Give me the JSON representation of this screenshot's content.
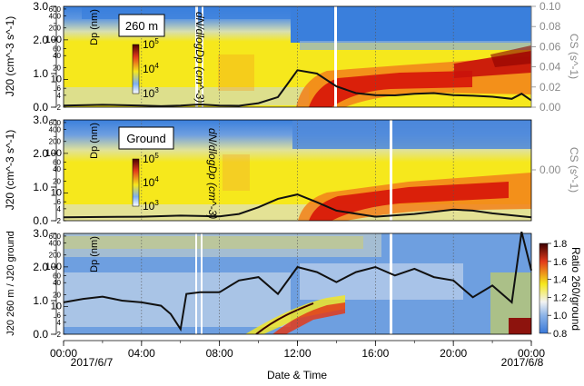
{
  "chart_data": [
    {
      "type": "heatmap",
      "panel": "260 m",
      "label": "260 m",
      "left_ylabel": "J20 (cm^-3 s^-1)",
      "left_ytick_labels": [
        "0.0",
        "1.0",
        "2.0",
        "3.0"
      ],
      "left_ylim": [
        0,
        3
      ],
      "dp_ylabel": "Dp (nm)",
      "dp_ytick_labels": [
        "2",
        "4",
        "6",
        "10",
        "20",
        "40",
        "60",
        "100",
        "200",
        "400",
        "600"
      ],
      "right_ylabel": "CS (s^-1)",
      "right_ytick_labels": [
        "0.00",
        "0.02",
        "0.04",
        "0.06",
        "0.08",
        "0.10"
      ],
      "right_ylim": [
        0,
        0.1
      ],
      "colorbar_label": "dN/dlogDp (cm^-3)",
      "colorbar_tick_labels": [
        "10^3",
        "10^4",
        "10^5"
      ],
      "series": [
        {
          "name": "J20 (260 m)",
          "x_hours": [
            0,
            2,
            4,
            5,
            6,
            7,
            8,
            9,
            10,
            11,
            11.5,
            12,
            13,
            14,
            15,
            16,
            17,
            18,
            19,
            20,
            21,
            22,
            23,
            23.5,
            24
          ],
          "values": [
            0.05,
            0.07,
            0.05,
            0.03,
            0.05,
            0.08,
            0.05,
            0.04,
            0.12,
            0.3,
            0.7,
            1.1,
            1.0,
            0.62,
            0.42,
            0.36,
            0.35,
            0.4,
            0.42,
            0.36,
            0.34,
            0.31,
            0.25,
            0.4,
            0.2
          ]
        }
      ]
    },
    {
      "type": "heatmap",
      "panel": "Ground",
      "label": "Ground",
      "left_ylabel": "J20 (cm^-3 s^-1)",
      "left_ytick_labels": [
        "0.0",
        "1.0",
        "2.0",
        "3.0"
      ],
      "left_ylim": [
        0,
        3
      ],
      "dp_ylabel": "Dp (nm)",
      "dp_ytick_labels": [
        "2",
        "4",
        "6",
        "10",
        "20",
        "40",
        "60",
        "100",
        "200",
        "400",
        "600"
      ],
      "right_ylabel": "CS (s^-1)",
      "right_ytick_labels": [
        "0.00"
      ],
      "colorbar_label": "dN/dlogDp (cm^-3)",
      "colorbar_tick_labels": [
        "10^3",
        "10^4",
        "10^5"
      ],
      "series": [
        {
          "name": "J20 (Ground)",
          "x_hours": [
            0,
            2,
            4,
            6,
            8,
            9,
            10,
            11,
            12,
            13,
            14,
            16,
            18,
            20,
            21,
            22,
            24
          ],
          "values": [
            0.1,
            0.11,
            0.12,
            0.15,
            0.13,
            0.2,
            0.4,
            0.65,
            0.78,
            0.55,
            0.3,
            0.12,
            0.2,
            0.33,
            0.3,
            0.22,
            0.1
          ]
        }
      ]
    },
    {
      "type": "heatmap",
      "panel": "Ratio",
      "left_ylabel": "J20 260 m / J20 ground",
      "left_ytick_labels": [
        "0.0",
        "1.0",
        "2.0",
        "3.0"
      ],
      "left_ylim": [
        0,
        3
      ],
      "dp_ylabel": "Dp (nm)",
      "dp_ytick_labels": [
        "2",
        "4",
        "6",
        "10",
        "20",
        "40",
        "60",
        "100",
        "200",
        "400",
        "600"
      ],
      "colorbar_label": "Ratio 260/ground",
      "colorbar_tick_labels": [
        "0.8",
        "1.0",
        "1.2",
        "1.4",
        "1.6",
        "1.8"
      ],
      "colorbar_range": [
        0.8,
        1.8
      ],
      "series": [
        {
          "name": "J20 ratio",
          "x_hours": [
            0,
            1,
            2,
            3,
            4,
            5,
            5.5,
            6,
            6.3,
            7,
            8,
            9,
            10,
            11,
            12,
            13,
            14,
            15,
            16,
            17,
            18,
            19,
            20,
            21,
            22,
            23,
            23.5,
            24
          ],
          "values": [
            0.95,
            1.05,
            1.12,
            1.0,
            0.95,
            0.85,
            0.6,
            0.15,
            1.2,
            1.25,
            1.25,
            1.6,
            1.7,
            1.2,
            2.0,
            1.85,
            1.55,
            1.85,
            2.0,
            1.75,
            1.95,
            1.7,
            1.6,
            1.1,
            1.45,
            0.95,
            3.05,
            1.9
          ]
        }
      ]
    }
  ],
  "x_axis": {
    "xlabel": "Date & Time",
    "xlim_hours": [
      0,
      24
    ],
    "tick_labels": [
      "00:00",
      "04:00",
      "08:00",
      "12:00",
      "16:00",
      "20:00",
      "00:00"
    ],
    "date_labels": [
      "2017/6/7",
      "2017/6/8"
    ]
  },
  "colors": {
    "line": "#111111",
    "spectral_low": "#3a78d8",
    "spectral_mid": "#f5e600",
    "spectral_high": "#d40000",
    "right_axis": "#8a8a8a"
  }
}
